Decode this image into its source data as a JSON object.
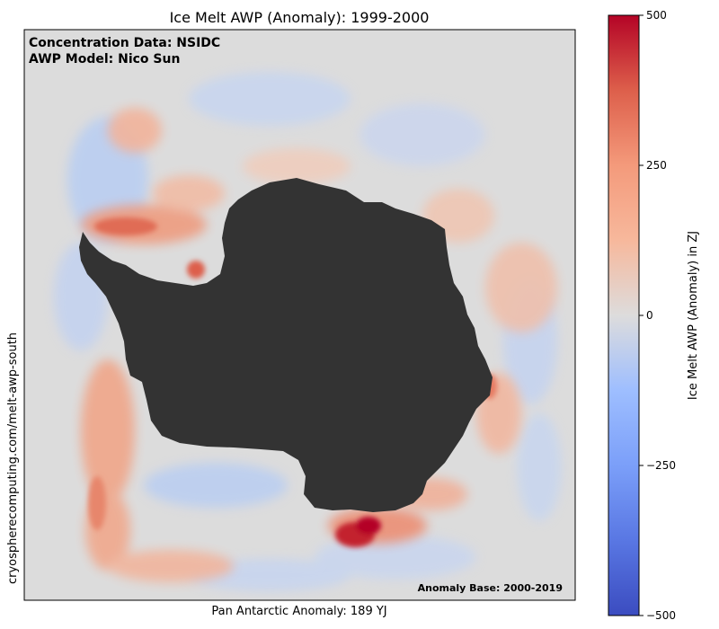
{
  "chart_data": {
    "type": "heatmap",
    "title": "Ice Melt AWP (Anomaly): 1999-2000",
    "xlabel": "Pan Antarctic Anomaly: 189 YJ",
    "ylabel": "cryospherecomputing.com/melt-awp-south",
    "annotations": {
      "line1": "Concentration Data: NSIDC",
      "line2": "AWP Model: Nico Sun",
      "base": "Anomaly Base: 2000-2019"
    },
    "colorbar": {
      "label": "Ice Melt AWP (Anomaly) in ZJ",
      "min": -500,
      "max": 500,
      "colormap": "coolwarm",
      "ticks": [
        500,
        250,
        0,
        -250,
        -500
      ],
      "tick_labels": [
        "500",
        "250",
        "0",
        "−250",
        "−500"
      ]
    },
    "map": {
      "region": "Antarctica (south polar stereographic)",
      "land_color": "#333333",
      "background_color": "#dcdcdc",
      "notable_features": [
        "positive anomalies (red) in Ross Sea",
        "positive anomalies in Weddell Sea",
        "positive anomalies around Antarctic Peninsula",
        "negative anomalies (blue) along outer ice edge"
      ]
    }
  }
}
